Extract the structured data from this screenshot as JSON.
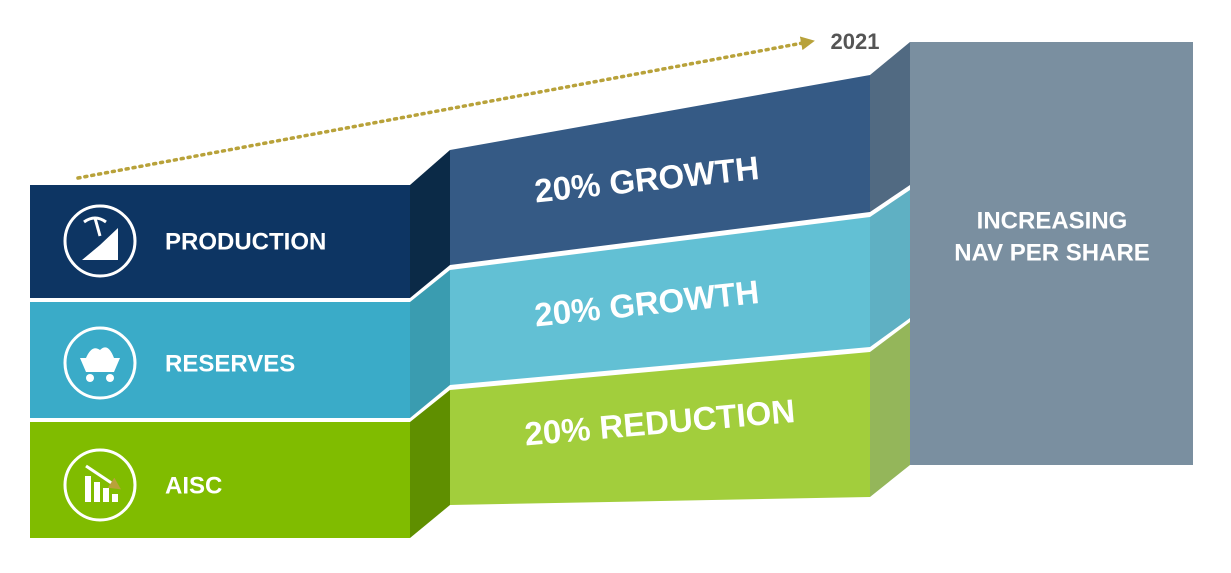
{
  "year": "2021",
  "rows": [
    {
      "label": "PRODUCTION",
      "change": "20% GROWTH"
    },
    {
      "label": "RESERVES",
      "change": "20% GROWTH"
    },
    {
      "label": "AISC",
      "change": "20% REDUCTION"
    }
  ],
  "result": {
    "lines": [
      "INCREASING",
      "NAV PER SHARE"
    ]
  }
}
